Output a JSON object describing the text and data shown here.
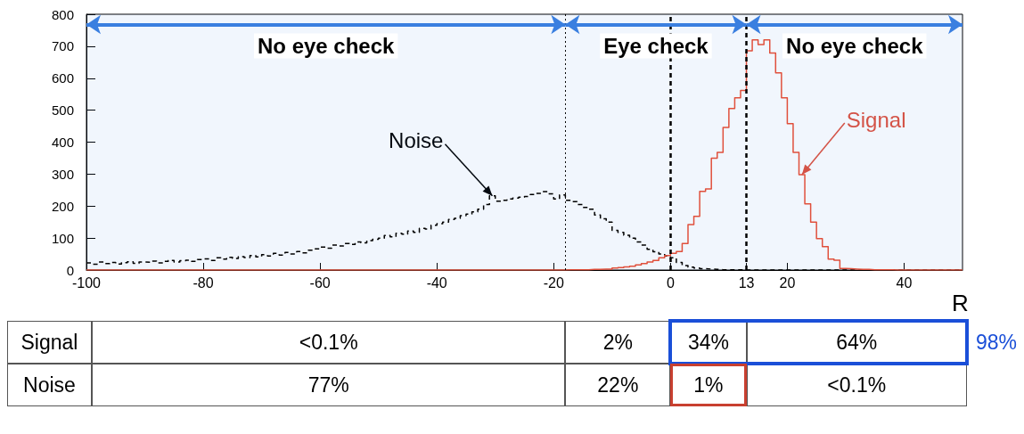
{
  "chart_data": {
    "type": "histogram",
    "xlabel": "R",
    "bins": [
      -100,
      -99,
      -98,
      -97,
      -96,
      -95,
      -94,
      -93,
      -92,
      -91,
      -90,
      -89,
      -88,
      -87,
      -86,
      -85,
      -84,
      -83,
      -82,
      -81,
      -80,
      -79,
      -78,
      -77,
      -76,
      -75,
      -74,
      -73,
      -72,
      -71,
      -70,
      -69,
      -68,
      -67,
      -66,
      -65,
      -64,
      -63,
      -62,
      -61,
      -60,
      -59,
      -58,
      -57,
      -56,
      -55,
      -54,
      -53,
      -52,
      -51,
      -50,
      -49,
      -48,
      -47,
      -46,
      -45,
      -44,
      -43,
      -42,
      -41,
      -40,
      -39,
      -38,
      -37,
      -36,
      -35,
      -34,
      -33,
      -32,
      -31,
      -30,
      -29,
      -28,
      -27,
      -26,
      -25,
      -24,
      -23,
      -22,
      -21,
      -20,
      -19,
      -18,
      -17,
      -16,
      -15,
      -14,
      -13,
      -12,
      -11,
      -10,
      -9,
      -8,
      -7,
      -6,
      -5,
      -4,
      -3,
      -2,
      -1,
      0,
      1,
      2,
      3,
      4,
      5,
      6,
      7,
      8,
      9,
      10,
      11,
      12,
      13,
      14,
      15,
      16,
      17,
      18,
      19,
      20,
      21,
      22,
      23,
      24,
      25,
      26,
      27,
      28,
      29,
      30,
      31,
      32,
      33,
      34,
      35,
      36,
      37,
      38,
      39,
      40,
      41,
      42,
      43,
      44,
      45,
      46,
      47,
      48,
      49,
      50
    ],
    "series": [
      {
        "color": "#000000",
        "line_style": "dashed",
        "values": [
          22,
          18,
          25,
          20,
          24,
          19,
          23,
          26,
          21,
          25,
          24,
          28,
          22,
          27,
          30,
          25,
          29,
          31,
          27,
          33,
          35,
          30,
          38,
          34,
          40,
          36,
          42,
          39,
          45,
          41,
          48,
          44,
          52,
          47,
          55,
          50,
          58,
          54,
          62,
          66,
          72,
          68,
          78,
          75,
          83,
          80,
          88,
          85,
          92,
          96,
          100,
          108,
          104,
          115,
          112,
          122,
          118,
          130,
          128,
          140,
          145,
          150,
          158,
          162,
          170,
          175,
          182,
          190,
          205,
          232,
          215,
          218,
          222,
          225,
          228,
          230,
          236,
          240,
          245,
          238,
          222,
          235,
          218,
          214,
          205,
          196,
          190,
          172,
          160,
          150,
          124,
          118,
          109,
          100,
          88,
          78,
          65,
          57,
          50,
          44,
          38,
          24,
          14,
          9,
          6,
          4,
          3,
          2,
          1,
          1,
          1,
          1,
          0,
          0,
          0,
          0,
          0,
          0,
          0,
          0,
          0,
          0,
          0,
          0,
          0,
          0,
          0,
          0,
          0,
          0,
          0,
          0,
          0,
          0,
          0,
          0,
          0,
          0,
          0,
          0,
          0,
          0,
          0,
          0,
          0,
          0,
          0,
          0,
          0,
          0
        ]
      },
      {
        "color": "#e0503c",
        "line_style": "solid",
        "values": [
          0,
          0,
          0,
          0,
          0,
          0,
          0,
          0,
          0,
          0,
          0,
          0,
          0,
          0,
          0,
          0,
          0,
          0,
          0,
          0,
          0,
          0,
          0,
          0,
          0,
          0,
          0,
          0,
          0,
          0,
          0,
          0,
          0,
          0,
          0,
          0,
          0,
          0,
          0,
          0,
          0,
          0,
          0,
          0,
          0,
          0,
          0,
          0,
          0,
          0,
          0,
          0,
          0,
          0,
          0,
          0,
          0,
          0,
          0,
          0,
          0,
          0,
          0,
          0,
          0,
          0,
          0,
          0,
          0,
          0,
          0,
          0,
          0,
          0,
          0,
          0,
          0,
          0,
          0,
          0,
          0,
          0,
          1,
          1,
          1,
          1,
          2,
          2,
          3,
          3,
          6,
          8,
          10,
          12,
          16,
          20,
          25,
          30,
          38,
          45,
          52,
          58,
          83,
          142,
          168,
          246,
          254,
          350,
          368,
          446,
          505,
          539,
          562,
          686,
          720,
          705,
          720,
          679,
          617,
          539,
          458,
          368,
          298,
          207,
          150,
          98,
          73,
          34,
          31,
          5,
          4,
          3,
          2,
          2,
          1,
          1,
          1,
          1,
          0,
          0,
          0,
          0,
          0,
          0,
          0,
          0,
          0,
          0,
          0,
          0
        ]
      }
    ],
    "xlim": [
      -100,
      50
    ],
    "xticks": [
      -100,
      -80,
      -60,
      -40,
      -20,
      0,
      13,
      20,
      40
    ],
    "ylim": [
      0,
      800
    ],
    "yticks": [
      0,
      100,
      200,
      300,
      400,
      500,
      600,
      700,
      800
    ],
    "ref_lines": [
      {
        "axis": "x",
        "value": -18,
        "color": "#000000",
        "line_style": "dotted"
      },
      {
        "axis": "x",
        "value": 0,
        "color": "#000000",
        "line_style": "dashed"
      },
      {
        "axis": "x",
        "value": 13,
        "color": "#000000",
        "line_style": "dashed"
      }
    ],
    "bands": [
      {
        "axis": "x",
        "from": -100,
        "to": -18,
        "label": "No eye check",
        "color": "#3a7fe0"
      },
      {
        "axis": "x",
        "from": -18,
        "to": 13,
        "label": "Eye check",
        "color": "#3a7fe0"
      },
      {
        "axis": "x",
        "from": 13,
        "to": 50,
        "label": "No eye check",
        "color": "#3a7fe0"
      }
    ],
    "annotations": [
      {
        "text": "Noise",
        "x": -30.5,
        "y": 232
      },
      {
        "text": "Signal",
        "x": 22.5,
        "y": 298
      },
      "Signal",
      "<0.1%",
      "2%",
      "34%",
      "64%",
      "Noise",
      "77%",
      "22%",
      "1%",
      "<0.1%",
      "98%"
    ]
  }
}
